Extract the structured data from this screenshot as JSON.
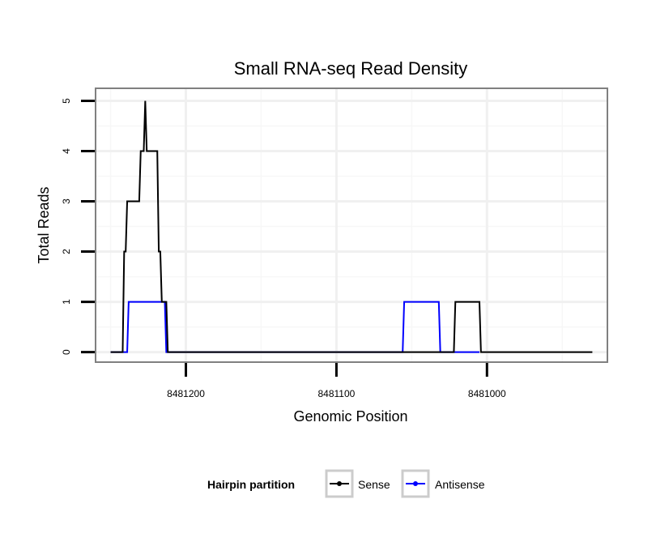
{
  "chart_data": {
    "type": "line",
    "title": "Small RNA-seq Read Density",
    "xlabel": "Genomic Position",
    "ylabel": "Total Reads",
    "x_reversed": true,
    "xlim": [
      8481260,
      8480920
    ],
    "ylim": [
      -0.2,
      5.25
    ],
    "x_ticks": [
      8481200,
      8481100,
      8481000
    ],
    "x_tick_labels": [
      "8481200",
      "8481100",
      "8481000"
    ],
    "y_ticks": [
      0,
      1,
      2,
      3,
      4,
      5
    ],
    "y_tick_labels": [
      "0",
      "1",
      "2",
      "3",
      "4",
      "5"
    ],
    "grid": true,
    "legend": {
      "title": "Hairpin partition",
      "position": "bottom",
      "entries": [
        "Sense",
        "Antisense"
      ]
    },
    "series": [
      {
        "name": "Sense",
        "color": "#000000",
        "points": [
          [
            8481250,
            0
          ],
          [
            8481242,
            0
          ],
          [
            8481241,
            2
          ],
          [
            8481240,
            2
          ],
          [
            8481239,
            3
          ],
          [
            8481231,
            3
          ],
          [
            8481230,
            4
          ],
          [
            8481228,
            4
          ],
          [
            8481227,
            5
          ],
          [
            8481226,
            4
          ],
          [
            8481219,
            4
          ],
          [
            8481218,
            2
          ],
          [
            8481217,
            2
          ],
          [
            8481216,
            1
          ],
          [
            8481213,
            1
          ],
          [
            8481212,
            0
          ],
          [
            8481022,
            0
          ],
          [
            8481021,
            1
          ],
          [
            8481005,
            1
          ],
          [
            8481004,
            0
          ],
          [
            8480930,
            0
          ]
        ]
      },
      {
        "name": "Antisense",
        "color": "#0000ff",
        "points": [
          [
            8481250,
            0
          ],
          [
            8481239,
            0
          ],
          [
            8481238,
            1
          ],
          [
            8481214,
            1
          ],
          [
            8481213,
            0
          ],
          [
            8481056,
            0
          ],
          [
            8481055,
            1
          ],
          [
            8481032,
            1
          ],
          [
            8481031,
            0
          ],
          [
            8481005,
            0
          ]
        ]
      }
    ]
  }
}
